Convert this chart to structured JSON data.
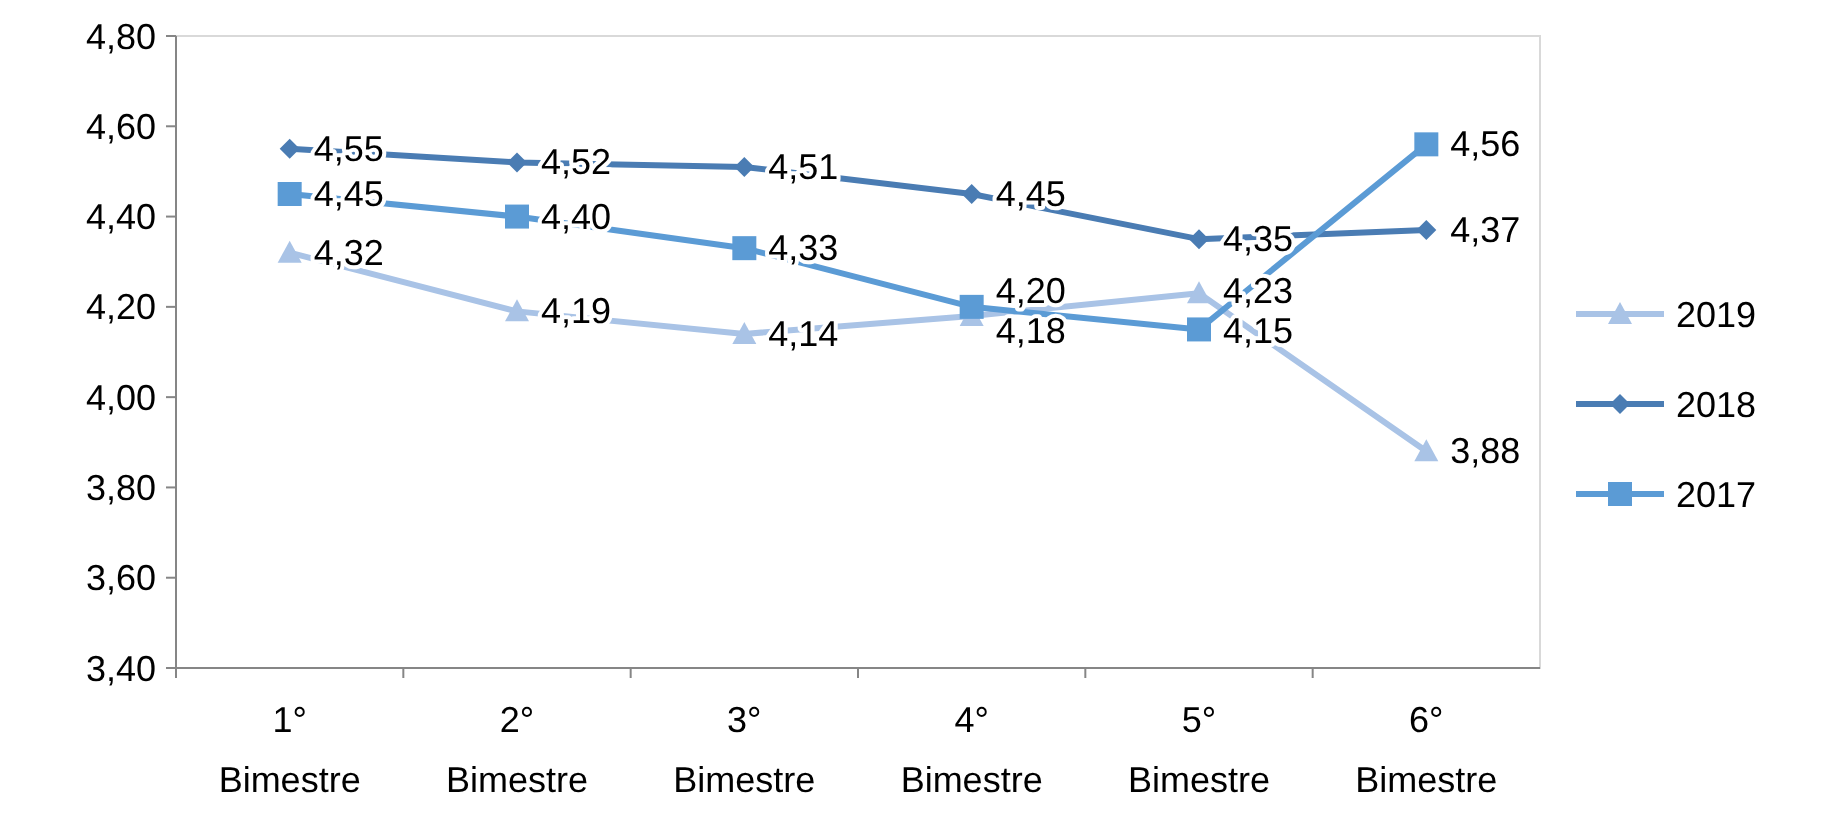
{
  "chart_data": {
    "type": "line",
    "categories": [
      "1° Bimestre",
      "2° Bimestre",
      "3° Bimestre",
      "4° Bimestre",
      "5° Bimestre",
      "6° Bimestre"
    ],
    "series": [
      {
        "name": "2019",
        "color": "#a9c3e6",
        "marker": "triangle",
        "values": [
          4.32,
          4.19,
          4.14,
          4.18,
          4.23,
          3.88
        ],
        "value_labels": [
          "4,32",
          "4,19",
          "4,14",
          "4,18",
          "4,23",
          "3,88"
        ]
      },
      {
        "name": "2018",
        "color": "#4a7cb3",
        "marker": "diamond",
        "values": [
          4.55,
          4.52,
          4.51,
          4.45,
          4.35,
          4.37
        ],
        "value_labels": [
          "4,55",
          "4,52",
          "4,51",
          "4,45",
          "4,35",
          "4,37"
        ]
      },
      {
        "name": "2017",
        "color": "#5b9bd5",
        "marker": "square",
        "values": [
          4.45,
          4.4,
          4.33,
          4.2,
          4.15,
          4.56
        ],
        "value_labels": [
          "4,45",
          "4,40",
          "4,33",
          "4,20",
          "4,15",
          "4,56"
        ]
      }
    ],
    "ylim": [
      3.4,
      4.8
    ],
    "yticks": [
      {
        "value": 3.4,
        "label": "3,40"
      },
      {
        "value": 3.6,
        "label": "3,60"
      },
      {
        "value": 3.8,
        "label": "3,80"
      },
      {
        "value": 4.0,
        "label": "4,00"
      },
      {
        "value": 4.2,
        "label": "4,20"
      },
      {
        "value": 4.4,
        "label": "4,40"
      },
      {
        "value": 4.6,
        "label": "4,60"
      },
      {
        "value": 4.8,
        "label": "4,80"
      }
    ],
    "grid": false,
    "legend": "right"
  }
}
